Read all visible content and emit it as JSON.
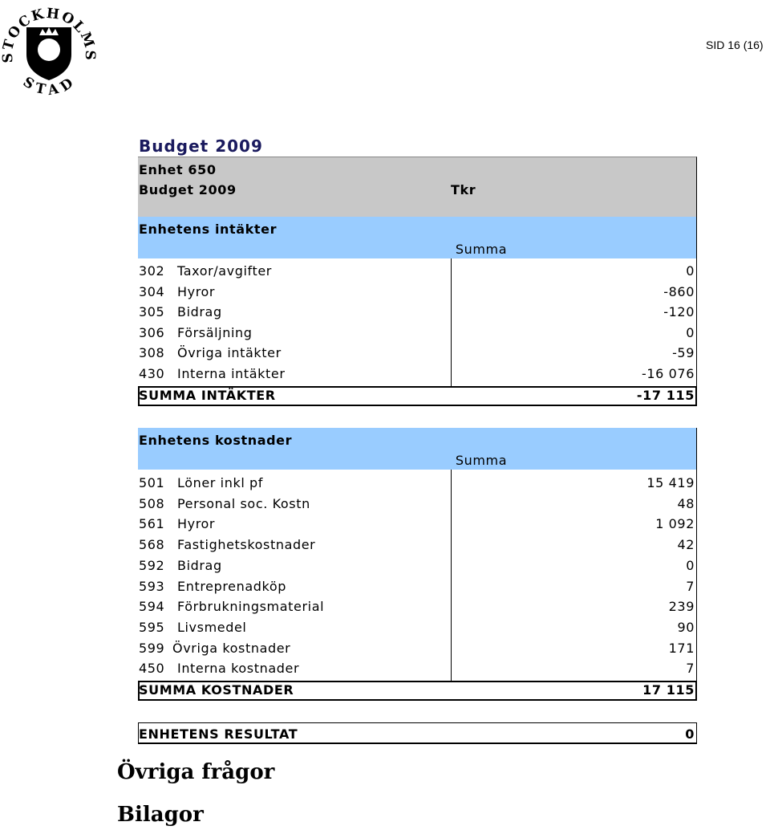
{
  "header": {
    "page_label": "SID 16 (16)",
    "logo": {
      "top": "STOCKHOLMS",
      "bottom": "STAD"
    }
  },
  "title": "Budget 2009",
  "table": {
    "unit_line": "Enhet 650",
    "budget_line": "Budget 2009",
    "currency": "Tkr",
    "income": {
      "title": "Enhetens intäkter",
      "column": "Summa",
      "rows": [
        [
          "302",
          "Taxor/avgifter",
          "0"
        ],
        [
          "304",
          "Hyror",
          "-860"
        ],
        [
          "305",
          "Bidrag",
          "-120"
        ],
        [
          "306",
          "Försäljning",
          "0"
        ],
        [
          "308",
          "Övriga intäkter",
          "-59"
        ],
        [
          "430",
          "Interna intäkter",
          "-16 076"
        ]
      ],
      "total": [
        "SUMMA INTÄKTER",
        "-17 115"
      ]
    },
    "costs": {
      "title": "Enhetens kostnader",
      "column": "Summa",
      "rows": [
        [
          "501",
          "Löner inkl pf",
          "15 419"
        ],
        [
          "508",
          "Personal soc. Kostn",
          "48"
        ],
        [
          "561",
          "Hyror",
          "1 092"
        ],
        [
          "568",
          "Fastighetskostnader",
          "42"
        ],
        [
          "592",
          "Bidrag",
          "0"
        ],
        [
          "593",
          "Entreprenadköp",
          "7"
        ],
        [
          "594",
          "Förbrukningsmaterial",
          "239"
        ],
        [
          "595",
          "Livsmedel",
          "90"
        ],
        [
          "599",
          "Övriga kostnader",
          "171"
        ],
        [
          "450",
          "Interna kostnader",
          "7"
        ]
      ],
      "total": [
        "SUMMA KOSTNADER",
        "17 115"
      ]
    },
    "result": [
      "ENHETENS RESULTAT",
      "0"
    ]
  },
  "sections": [
    "Övriga frågor",
    "Bilagor"
  ]
}
